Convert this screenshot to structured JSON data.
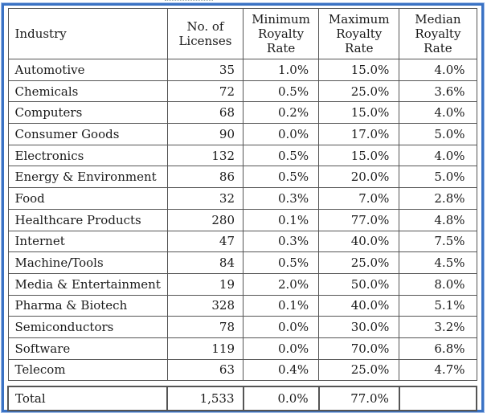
{
  "headers": {
    "industry": "Industry",
    "licenses": [
      "No. of",
      "Licenses"
    ],
    "min": [
      "Minimum",
      "Royalty",
      "Rate"
    ],
    "max": [
      "Maximum",
      "Royalty",
      "Rate"
    ],
    "median": [
      "Median",
      "Royalty",
      "Rate"
    ]
  },
  "rows": [
    {
      "industry": "Automotive",
      "licenses": "35",
      "min": "1.0%",
      "max": "15.0%",
      "median": "4.0%"
    },
    {
      "industry": "Chemicals",
      "licenses": "72",
      "min": "0.5%",
      "max": "25.0%",
      "median": "3.6%"
    },
    {
      "industry": "Computers",
      "licenses": "68",
      "min": "0.2%",
      "max": "15.0%",
      "median": "4.0%"
    },
    {
      "industry": "Consumer Goods",
      "licenses": "90",
      "min": "0.0%",
      "max": "17.0%",
      "median": "5.0%"
    },
    {
      "industry": "Electronics",
      "licenses": "132",
      "min": "0.5%",
      "max": "15.0%",
      "median": "4.0%"
    },
    {
      "industry": "Energy & Environment",
      "licenses": "86",
      "min": "0.5%",
      "max": "20.0%",
      "median": "5.0%"
    },
    {
      "industry": "Food",
      "licenses": "32",
      "min": "0.3%",
      "max": "7.0%",
      "median": "2.8%"
    },
    {
      "industry": "Healthcare Products",
      "licenses": "280",
      "min": "0.1%",
      "max": "77.0%",
      "median": "4.8%"
    },
    {
      "industry": "Internet",
      "licenses": "47",
      "min": "0.3%",
      "max": "40.0%",
      "median": "7.5%"
    },
    {
      "industry": "Machine/Tools",
      "licenses": "84",
      "min": "0.5%",
      "max": "25.0%",
      "median": "4.5%"
    },
    {
      "industry": "Media & Entertainment",
      "licenses": "19",
      "min": "2.0%",
      "max": "50.0%",
      "median": "8.0%"
    },
    {
      "industry": "Pharma & Biotech",
      "licenses": "328",
      "min": "0.1%",
      "max": "40.0%",
      "median": "5.1%"
    },
    {
      "industry": "Semiconductors",
      "licenses": "78",
      "min": "0.0%",
      "max": "30.0%",
      "median": "3.2%"
    },
    {
      "industry": "Software",
      "licenses": "119",
      "min": "0.0%",
      "max": "70.0%",
      "median": "6.8%"
    },
    {
      "industry": "Telecom",
      "licenses": "63",
      "min": "0.4%",
      "max": "25.0%",
      "median": "4.7%"
    }
  ],
  "total": {
    "industry": "Total",
    "licenses": "1,533",
    "min": "0.0%",
    "max": "77.0%",
    "median": ""
  },
  "colors": {
    "frame": "#3a72c4",
    "grid": "#555555"
  }
}
